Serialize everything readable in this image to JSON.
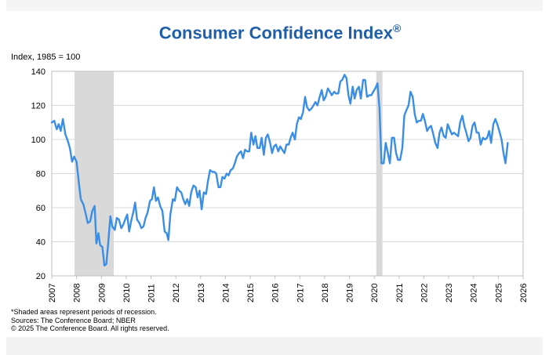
{
  "chart_data": {
    "type": "line",
    "title": "Consumer Confidence Index",
    "title_mark": "®",
    "ylabel": "Index, 1985 = 100",
    "xlabel": "",
    "xlim": [
      2007,
      2026
    ],
    "ylim": [
      20,
      140
    ],
    "yticks": [
      20,
      40,
      60,
      80,
      100,
      120,
      140
    ],
    "xticks": [
      2007,
      2008,
      2009,
      2010,
      2011,
      2012,
      2013,
      2014,
      2015,
      2016,
      2017,
      2018,
      2019,
      2020,
      2021,
      2022,
      2023,
      2024,
      2025,
      2026
    ],
    "grid": true,
    "line_color": "#3a8ee6",
    "recession_color": "#d9d9d9",
    "recessions": [
      [
        2007.92,
        2009.5
      ],
      [
        2020.08,
        2020.33
      ]
    ],
    "series": [
      {
        "name": "Consumer Confidence Index",
        "points": [
          [
            2007.0,
            110
          ],
          [
            2007.1,
            111
          ],
          [
            2007.2,
            106
          ],
          [
            2007.28,
            109
          ],
          [
            2007.36,
            105
          ],
          [
            2007.45,
            112
          ],
          [
            2007.55,
            103
          ],
          [
            2007.65,
            99
          ],
          [
            2007.73,
            95
          ],
          [
            2007.82,
            87
          ],
          [
            2007.9,
            90
          ],
          [
            2008.0,
            87
          ],
          [
            2008.08,
            76
          ],
          [
            2008.17,
            65
          ],
          [
            2008.27,
            62
          ],
          [
            2008.36,
            57
          ],
          [
            2008.45,
            51
          ],
          [
            2008.55,
            52
          ],
          [
            2008.63,
            58
          ],
          [
            2008.73,
            61
          ],
          [
            2008.8,
            39
          ],
          [
            2008.88,
            45
          ],
          [
            2008.95,
            38
          ],
          [
            2009.04,
            37
          ],
          [
            2009.12,
            26
          ],
          [
            2009.2,
            27
          ],
          [
            2009.28,
            40
          ],
          [
            2009.36,
            55
          ],
          [
            2009.44,
            49
          ],
          [
            2009.54,
            47
          ],
          [
            2009.62,
            54
          ],
          [
            2009.71,
            53
          ],
          [
            2009.8,
            48
          ],
          [
            2009.88,
            50
          ],
          [
            2009.96,
            53
          ],
          [
            2010.04,
            56
          ],
          [
            2010.12,
            46
          ],
          [
            2010.2,
            52
          ],
          [
            2010.28,
            57
          ],
          [
            2010.36,
            63
          ],
          [
            2010.44,
            53
          ],
          [
            2010.53,
            51
          ],
          [
            2010.61,
            48
          ],
          [
            2010.7,
            49
          ],
          [
            2010.78,
            54
          ],
          [
            2010.86,
            57
          ],
          [
            2010.96,
            64
          ],
          [
            2011.04,
            65
          ],
          [
            2011.12,
            72
          ],
          [
            2011.2,
            64
          ],
          [
            2011.28,
            66
          ],
          [
            2011.37,
            61
          ],
          [
            2011.46,
            58
          ],
          [
            2011.55,
            46
          ],
          [
            2011.63,
            45
          ],
          [
            2011.7,
            41
          ],
          [
            2011.78,
            56
          ],
          [
            2011.88,
            65
          ],
          [
            2011.96,
            64
          ],
          [
            2012.05,
            72
          ],
          [
            2012.13,
            70
          ],
          [
            2012.22,
            69
          ],
          [
            2012.3,
            65
          ],
          [
            2012.38,
            62
          ],
          [
            2012.46,
            65
          ],
          [
            2012.54,
            61
          ],
          [
            2012.62,
            69
          ],
          [
            2012.71,
            73
          ],
          [
            2012.8,
            72
          ],
          [
            2012.88,
            66
          ],
          [
            2012.96,
            70
          ],
          [
            2013.04,
            59
          ],
          [
            2013.13,
            69
          ],
          [
            2013.22,
            68
          ],
          [
            2013.3,
            76
          ],
          [
            2013.38,
            82
          ],
          [
            2013.47,
            81
          ],
          [
            2013.55,
            81
          ],
          [
            2013.63,
            80
          ],
          [
            2013.72,
            72
          ],
          [
            2013.8,
            72
          ],
          [
            2013.88,
            78
          ],
          [
            2013.96,
            77
          ],
          [
            2014.05,
            80
          ],
          [
            2014.13,
            79
          ],
          [
            2014.21,
            82
          ],
          [
            2014.3,
            83
          ],
          [
            2014.38,
            86
          ],
          [
            2014.46,
            90
          ],
          [
            2014.55,
            92
          ],
          [
            2014.63,
            93
          ],
          [
            2014.71,
            89
          ],
          [
            2014.79,
            94
          ],
          [
            2014.88,
            93
          ],
          [
            2014.96,
            93
          ],
          [
            2015.04,
            104
          ],
          [
            2015.13,
            97
          ],
          [
            2015.21,
            102
          ],
          [
            2015.29,
            95
          ],
          [
            2015.38,
            95
          ],
          [
            2015.46,
            101
          ],
          [
            2015.55,
            91
          ],
          [
            2015.63,
            101
          ],
          [
            2015.71,
            103
          ],
          [
            2015.8,
            98
          ],
          [
            2015.88,
            92
          ],
          [
            2015.96,
            96
          ],
          [
            2016.04,
            97
          ],
          [
            2016.13,
            93
          ],
          [
            2016.21,
            96
          ],
          [
            2016.29,
            94
          ],
          [
            2016.38,
            92
          ],
          [
            2016.46,
            97
          ],
          [
            2016.55,
            97
          ],
          [
            2016.63,
            101
          ],
          [
            2016.71,
            104
          ],
          [
            2016.8,
            100
          ],
          [
            2016.88,
            109
          ],
          [
            2016.96,
            113
          ],
          [
            2017.04,
            112
          ],
          [
            2017.13,
            116
          ],
          [
            2017.21,
            125
          ],
          [
            2017.29,
            119
          ],
          [
            2017.38,
            117
          ],
          [
            2017.46,
            118
          ],
          [
            2017.55,
            120
          ],
          [
            2017.63,
            122
          ],
          [
            2017.71,
            120
          ],
          [
            2017.8,
            125
          ],
          [
            2017.88,
            129
          ],
          [
            2017.96,
            123
          ],
          [
            2018.04,
            125
          ],
          [
            2018.13,
            130
          ],
          [
            2018.21,
            128
          ],
          [
            2018.29,
            126
          ],
          [
            2018.38,
            128
          ],
          [
            2018.46,
            127
          ],
          [
            2018.55,
            127
          ],
          [
            2018.63,
            134
          ],
          [
            2018.71,
            135
          ],
          [
            2018.8,
            138
          ],
          [
            2018.88,
            136
          ],
          [
            2018.96,
            126
          ],
          [
            2019.04,
            121
          ],
          [
            2019.13,
            131
          ],
          [
            2019.21,
            124
          ],
          [
            2019.29,
            129
          ],
          [
            2019.38,
            131
          ],
          [
            2019.46,
            124
          ],
          [
            2019.55,
            135
          ],
          [
            2019.63,
            135
          ],
          [
            2019.71,
            125
          ],
          [
            2019.8,
            126
          ],
          [
            2019.88,
            126
          ],
          [
            2019.96,
            128
          ],
          [
            2020.04,
            130
          ],
          [
            2020.13,
            133
          ],
          [
            2020.21,
            118
          ],
          [
            2020.29,
            86
          ],
          [
            2020.38,
            86
          ],
          [
            2020.46,
            98
          ],
          [
            2020.55,
            92
          ],
          [
            2020.63,
            86
          ],
          [
            2020.71,
            101
          ],
          [
            2020.8,
            101
          ],
          [
            2020.88,
            92
          ],
          [
            2020.96,
            88
          ],
          [
            2021.04,
            88
          ],
          [
            2021.13,
            95
          ],
          [
            2021.21,
            114
          ],
          [
            2021.29,
            117
          ],
          [
            2021.38,
            120
          ],
          [
            2021.46,
            128
          ],
          [
            2021.55,
            125
          ],
          [
            2021.63,
            115
          ],
          [
            2021.71,
            110
          ],
          [
            2021.8,
            111
          ],
          [
            2021.88,
            111
          ],
          [
            2021.96,
            115
          ],
          [
            2022.04,
            111
          ],
          [
            2022.13,
            105
          ],
          [
            2022.21,
            107
          ],
          [
            2022.29,
            108
          ],
          [
            2022.38,
            103
          ],
          [
            2022.46,
            98
          ],
          [
            2022.55,
            95
          ],
          [
            2022.63,
            104
          ],
          [
            2022.71,
            107
          ],
          [
            2022.8,
            102
          ],
          [
            2022.88,
            101
          ],
          [
            2022.96,
            109
          ],
          [
            2023.04,
            106
          ],
          [
            2023.13,
            103
          ],
          [
            2023.21,
            104
          ],
          [
            2023.29,
            103
          ],
          [
            2023.38,
            102
          ],
          [
            2023.46,
            110
          ],
          [
            2023.55,
            114
          ],
          [
            2023.63,
            108
          ],
          [
            2023.71,
            104
          ],
          [
            2023.8,
            99
          ],
          [
            2023.88,
            101
          ],
          [
            2023.96,
            108
          ],
          [
            2024.04,
            110
          ],
          [
            2024.13,
            104
          ],
          [
            2024.21,
            104
          ],
          [
            2024.29,
            97
          ],
          [
            2024.38,
            101
          ],
          [
            2024.46,
            100
          ],
          [
            2024.55,
            101
          ],
          [
            2024.63,
            105
          ],
          [
            2024.71,
            98
          ],
          [
            2024.8,
            109
          ],
          [
            2024.88,
            112
          ],
          [
            2024.96,
            109
          ],
          [
            2025.04,
            105
          ],
          [
            2025.13,
            100
          ],
          [
            2025.21,
            92
          ],
          [
            2025.29,
            86
          ],
          [
            2025.38,
            98
          ]
        ]
      }
    ]
  },
  "footnotes": {
    "line1": "*Shaded areas represent periods of recession.",
    "line2": "Sources: The Conference Board; NBER",
    "line3": "© 2025 The Conference Board. All rights reserved."
  }
}
